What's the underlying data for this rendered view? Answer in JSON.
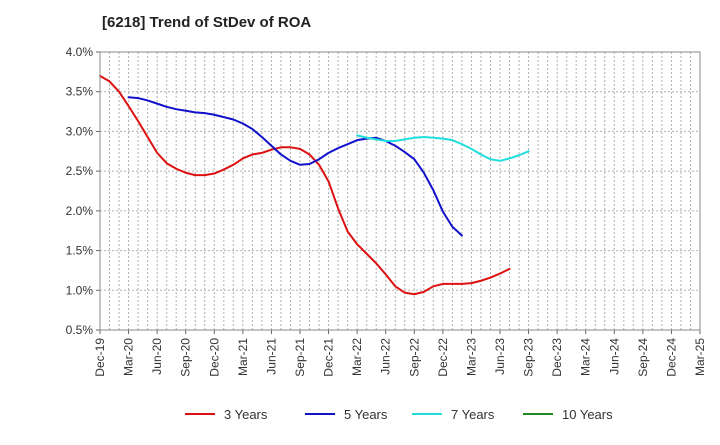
{
  "chart_data": {
    "type": "line",
    "title": "[6218]  Trend of StDev of ROA",
    "xlabel": "",
    "ylabel": "",
    "ylim": [
      0.5,
      4.0
    ],
    "y_ticks": [
      "0.5%",
      "1.0%",
      "1.5%",
      "2.0%",
      "2.5%",
      "3.0%",
      "3.5%",
      "4.0%"
    ],
    "x_ticks": [
      "Dec-19",
      "Mar-20",
      "Jun-20",
      "Sep-20",
      "Dec-20",
      "Mar-21",
      "Jun-21",
      "Sep-21",
      "Dec-21",
      "Mar-22",
      "Jun-22",
      "Sep-22",
      "Dec-22",
      "Mar-23",
      "Jun-23",
      "Sep-23",
      "Dec-23",
      "Mar-24",
      "Jun-24",
      "Sep-24",
      "Dec-24",
      "Mar-25"
    ],
    "grid": true,
    "legend_position": "bottom",
    "series": [
      {
        "name": "3 Years",
        "color": "#dd1111",
        "points": [
          [
            "Dec-19",
            3.7
          ],
          [
            "Jan-20",
            3.63
          ],
          [
            "Feb-20",
            3.5
          ],
          [
            "Mar-20",
            3.32
          ],
          [
            "Apr-20",
            3.13
          ],
          [
            "May-20",
            2.93
          ],
          [
            "Jun-20",
            2.73
          ],
          [
            "Jul-20",
            2.6
          ],
          [
            "Aug-20",
            2.53
          ],
          [
            "Sep-20",
            2.48
          ],
          [
            "Oct-20",
            2.45
          ],
          [
            "Nov-20",
            2.45
          ],
          [
            "Dec-20",
            2.47
          ],
          [
            "Jan-21",
            2.52
          ],
          [
            "Feb-21",
            2.58
          ],
          [
            "Mar-21",
            2.66
          ],
          [
            "Apr-21",
            2.71
          ],
          [
            "May-21",
            2.73
          ],
          [
            "Jun-21",
            2.77
          ],
          [
            "Jul-21",
            2.8
          ],
          [
            "Aug-21",
            2.8
          ],
          [
            "Sep-21",
            2.78
          ],
          [
            "Oct-21",
            2.71
          ],
          [
            "Nov-21",
            2.58
          ],
          [
            "Dec-21",
            2.37
          ],
          [
            "Jan-22",
            2.03
          ],
          [
            "Feb-22",
            1.74
          ],
          [
            "Mar-22",
            1.58
          ],
          [
            "Apr-22",
            1.46
          ],
          [
            "May-22",
            1.34
          ],
          [
            "Jun-22",
            1.2
          ],
          [
            "Jul-22",
            1.05
          ],
          [
            "Aug-22",
            0.97
          ],
          [
            "Sep-22",
            0.95
          ],
          [
            "Oct-22",
            0.98
          ],
          [
            "Nov-22",
            1.05
          ],
          [
            "Dec-22",
            1.08
          ],
          [
            "Jan-23",
            1.08
          ],
          [
            "Feb-23",
            1.08
          ],
          [
            "Mar-23",
            1.09
          ],
          [
            "Apr-23",
            1.12
          ],
          [
            "May-23",
            1.16
          ],
          [
            "Jun-23",
            1.21
          ],
          [
            "Jul-23",
            1.27
          ]
        ]
      },
      {
        "name": "5 Years",
        "color": "#1111cc",
        "points": [
          [
            "Mar-20",
            3.43
          ],
          [
            "Apr-20",
            3.42
          ],
          [
            "May-20",
            3.39
          ],
          [
            "Jun-20",
            3.35
          ],
          [
            "Jul-20",
            3.31
          ],
          [
            "Aug-20",
            3.28
          ],
          [
            "Sep-20",
            3.26
          ],
          [
            "Oct-20",
            3.24
          ],
          [
            "Nov-20",
            3.23
          ],
          [
            "Dec-20",
            3.21
          ],
          [
            "Jan-21",
            3.18
          ],
          [
            "Feb-21",
            3.15
          ],
          [
            "Mar-21",
            3.1
          ],
          [
            "Apr-21",
            3.03
          ],
          [
            "May-21",
            2.93
          ],
          [
            "Jun-21",
            2.82
          ],
          [
            "Jul-21",
            2.71
          ],
          [
            "Aug-21",
            2.63
          ],
          [
            "Sep-21",
            2.58
          ],
          [
            "Oct-21",
            2.59
          ],
          [
            "Nov-21",
            2.65
          ],
          [
            "Dec-21",
            2.73
          ],
          [
            "Jan-22",
            2.79
          ],
          [
            "Feb-22",
            2.84
          ],
          [
            "Mar-22",
            2.89
          ],
          [
            "Apr-22",
            2.91
          ],
          [
            "May-22",
            2.92
          ],
          [
            "Jun-22",
            2.88
          ],
          [
            "Jul-22",
            2.82
          ],
          [
            "Aug-22",
            2.74
          ],
          [
            "Sep-22",
            2.65
          ],
          [
            "Oct-22",
            2.48
          ],
          [
            "Nov-22",
            2.26
          ],
          [
            "Dec-22",
            1.99
          ],
          [
            "Jan-23",
            1.8
          ],
          [
            "Feb-23",
            1.69
          ]
        ]
      },
      {
        "name": "7 Years",
        "color": "#22dddd",
        "points": [
          [
            "Mar-22",
            2.95
          ],
          [
            "Apr-22",
            2.92
          ],
          [
            "May-22",
            2.9
          ],
          [
            "Jun-22",
            2.88
          ],
          [
            "Jul-22",
            2.88
          ],
          [
            "Aug-22",
            2.9
          ],
          [
            "Sep-22",
            2.92
          ],
          [
            "Oct-22",
            2.93
          ],
          [
            "Nov-22",
            2.92
          ],
          [
            "Dec-22",
            2.91
          ],
          [
            "Jan-23",
            2.89
          ],
          [
            "Feb-23",
            2.84
          ],
          [
            "Mar-23",
            2.78
          ],
          [
            "Apr-23",
            2.71
          ],
          [
            "May-23",
            2.65
          ],
          [
            "Jun-23",
            2.63
          ],
          [
            "Jul-23",
            2.66
          ],
          [
            "Aug-23",
            2.7
          ],
          [
            "Sep-23",
            2.75
          ]
        ]
      },
      {
        "name": "10 Years",
        "color": "#228822",
        "points": []
      }
    ]
  }
}
